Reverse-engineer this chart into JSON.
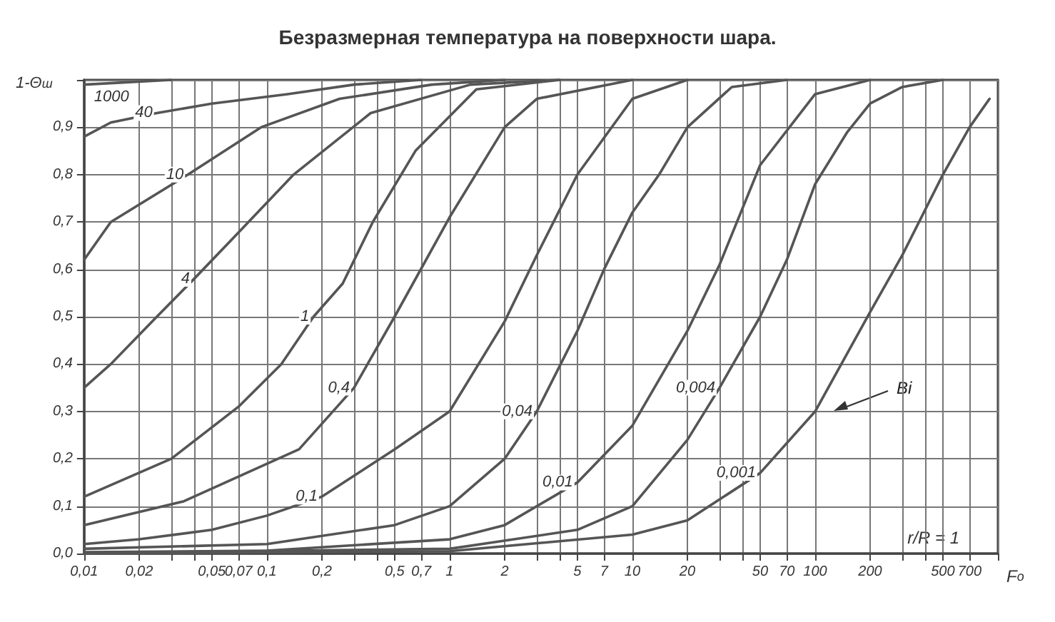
{
  "chart_data": {
    "type": "line",
    "title": "Безразмерная температура на поверхности шара.",
    "xlabel": "F$_{o}$",
    "ylabel": "1-Θ$_{ш}$",
    "log": "x",
    "grid": true,
    "legend": false,
    "marker": "none",
    "line_style": "solid",
    "xlim": [
      0.01,
      1000
    ],
    "ylim": [
      0,
      1
    ],
    "xticks": [
      {
        "value": 0.01,
        "label": "0,01"
      },
      {
        "value": 0.02,
        "label": "0,02"
      },
      {
        "value": 0.03,
        "label": null
      },
      {
        "value": 0.04,
        "label": null
      },
      {
        "value": 0.05,
        "label": "0,05"
      },
      {
        "value": 0.07,
        "label": "0,07"
      },
      {
        "value": 0.1,
        "label": "0,1"
      },
      {
        "value": 0.2,
        "label": "0,2"
      },
      {
        "value": 0.3,
        "label": null
      },
      {
        "value": 0.4,
        "label": null
      },
      {
        "value": 0.5,
        "label": "0,5"
      },
      {
        "value": 0.7,
        "label": "0,7"
      },
      1,
      2,
      {
        "value": 3,
        "label": null
      },
      {
        "value": 4,
        "label": null
      },
      5,
      7,
      10,
      20,
      {
        "value": 30,
        "label": null
      },
      {
        "value": 40,
        "label": null
      },
      50,
      70,
      100,
      200,
      {
        "value": 300,
        "label": null
      },
      {
        "value": 400,
        "label": null
      },
      500,
      700,
      {
        "value": 1000,
        "label": null
      }
    ],
    "yticks": [
      {
        "value": 0,
        "label": "0,0"
      },
      {
        "value": 0.1,
        "label": "0,1"
      },
      {
        "value": 0.2,
        "label": "0,2"
      },
      {
        "value": 0.3,
        "label": "0,3"
      },
      {
        "value": 0.4,
        "label": "0,4"
      },
      {
        "value": 0.5,
        "label": "0,5"
      },
      {
        "value": 0.6,
        "label": "0,6"
      },
      {
        "value": 0.7,
        "label": "0,7"
      },
      {
        "value": 0.8,
        "label": "0,8"
      },
      {
        "value": 0.9,
        "label": "0,9"
      },
      {
        "value": 1,
        "label": null
      }
    ],
    "annotations": [
      "Bi",
      "r/R = 1"
    ],
    "series": [
      {
        "name": "1000",
        "color": "#555555",
        "x": [
          0.01,
          0.03
        ],
        "values": [
          0.99,
          1
        ]
      },
      {
        "name": "40",
        "color": "#555555",
        "x": [
          0.01,
          0.014,
          0.025,
          0.05,
          0.13,
          0.3,
          0.7
        ],
        "values": [
          0.88,
          0.91,
          0.93,
          0.95,
          0.97,
          0.99,
          1
        ]
      },
      {
        "name": "10",
        "color": "#555555",
        "x": [
          0.01,
          0.014,
          0.037,
          0.093,
          0.25,
          0.8,
          2
        ],
        "values": [
          0.62,
          0.7,
          0.8,
          0.9,
          0.96,
          0.99,
          1
        ]
      },
      {
        "name": "4",
        "color": "#555555",
        "x": [
          0.01,
          0.014,
          0.025,
          0.04,
          0.067,
          0.14,
          0.37,
          1.3,
          4
        ],
        "values": [
          0.35,
          0.4,
          0.5,
          0.58,
          0.67,
          0.8,
          0.93,
          0.99,
          1
        ]
      },
      {
        "name": "1",
        "color": "#555555",
        "x": [
          0.01,
          0.03,
          0.07,
          0.12,
          0.18,
          0.26,
          0.38,
          0.65,
          1.4,
          4
        ],
        "values": [
          0.12,
          0.2,
          0.31,
          0.4,
          0.5,
          0.57,
          0.7,
          0.85,
          0.98,
          1
        ]
      },
      {
        "name": "0,4",
        "color": "#555555",
        "x": [
          0.01,
          0.035,
          0.15,
          0.3,
          0.5,
          1,
          2,
          3,
          10
        ],
        "values": [
          0.06,
          0.11,
          0.22,
          0.35,
          0.5,
          0.71,
          0.9,
          0.96,
          1
        ]
      },
      {
        "name": "0,1",
        "color": "#555555",
        "x": [
          0.01,
          0.02,
          0.05,
          0.1,
          0.2,
          0.5,
          1,
          2,
          3,
          5,
          10,
          20
        ],
        "values": [
          0.02,
          0.03,
          0.05,
          0.08,
          0.12,
          0.22,
          0.3,
          0.49,
          0.63,
          0.8,
          0.96,
          1
        ]
      },
      {
        "name": "0,04",
        "color": "#555555",
        "x": [
          0.01,
          0.1,
          0.5,
          1,
          2,
          3,
          5,
          7,
          10,
          14,
          20,
          35,
          70
        ],
        "values": [
          0.01,
          0.02,
          0.06,
          0.1,
          0.2,
          0.3,
          0.47,
          0.6,
          0.72,
          0.8,
          0.9,
          0.985,
          1
        ]
      },
      {
        "name": "0,01",
        "color": "#555555",
        "x": [
          0.01,
          0.1,
          1,
          2,
          5,
          10,
          20,
          30,
          50,
          100,
          200
        ],
        "values": [
          0.003,
          0.006,
          0.03,
          0.06,
          0.15,
          0.27,
          0.47,
          0.61,
          0.82,
          0.97,
          1
        ]
      },
      {
        "name": "0,004",
        "color": "#555555",
        "x": [
          0.01,
          1,
          5,
          10,
          20,
          30,
          50,
          70,
          100,
          150,
          200,
          300,
          500
        ],
        "values": [
          0.001,
          0.01,
          0.05,
          0.1,
          0.24,
          0.35,
          0.5,
          0.62,
          0.78,
          0.89,
          0.95,
          0.985,
          1
        ]
      },
      {
        "name": "0,001",
        "color": "#555555",
        "x": [
          0.01,
          1,
          10,
          20,
          50,
          100,
          200,
          300,
          500,
          700,
          900
        ],
        "values": [
          0,
          0.005,
          0.04,
          0.07,
          0.17,
          0.3,
          0.51,
          0.63,
          0.8,
          0.9,
          0.96
        ]
      }
    ]
  }
}
